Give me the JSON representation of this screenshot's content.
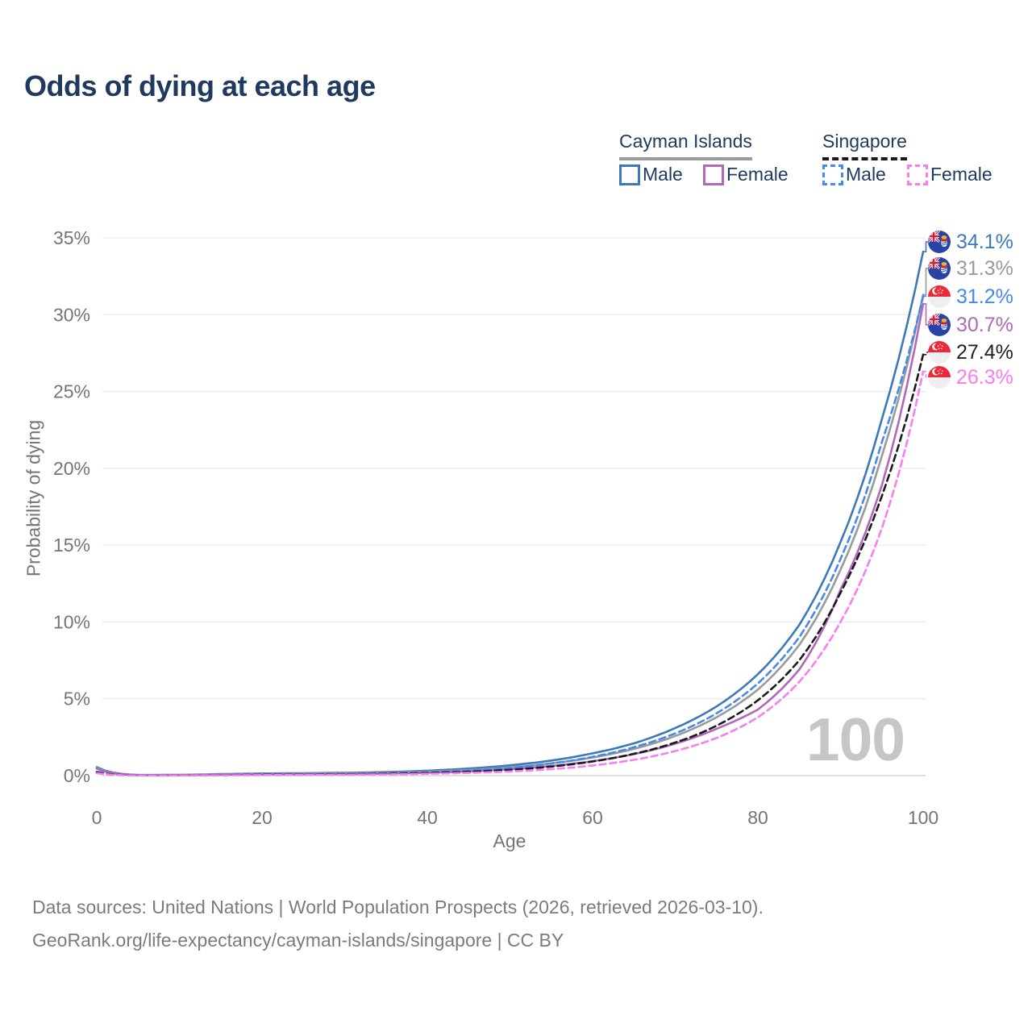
{
  "title": "Odds of dying at each age",
  "legend": {
    "groups": [
      {
        "label": "Cayman Islands",
        "line_style": "solid",
        "underline_color": "#9a9a9a",
        "items": [
          {
            "label": "Male",
            "color": "#3d79b8"
          },
          {
            "label": "Female",
            "color": "#b168ba"
          }
        ]
      },
      {
        "label": "Singapore",
        "line_style": "dashed",
        "underline_color": "#1a1a1a",
        "items": [
          {
            "label": "Male",
            "color": "#4589ec"
          },
          {
            "label": "Female",
            "color": "#f97cf0"
          }
        ]
      }
    ]
  },
  "chart_data": {
    "type": "line",
    "xlabel": "Age",
    "ylabel": "Probability of dying",
    "xlim": [
      0,
      100
    ],
    "ylim": [
      0,
      35
    ],
    "x_ticks": [
      0,
      20,
      40,
      60,
      80,
      100
    ],
    "y_ticks": [
      "0%",
      "5%",
      "10%",
      "15%",
      "20%",
      "25%",
      "30%",
      "35%"
    ],
    "grid": "horizontal",
    "hover_age_indicator": "100",
    "x": [
      0,
      5,
      10,
      15,
      20,
      25,
      30,
      35,
      40,
      45,
      50,
      55,
      60,
      65,
      70,
      75,
      80,
      85,
      90,
      95,
      100
    ],
    "series": [
      {
        "key": "cm",
        "name": "Cayman Islands Male",
        "country": "Cayman Islands",
        "sex": "Male",
        "color": "#3d79b8",
        "dashed": false,
        "end_label": "34.1%",
        "label_color": "#3d79b8",
        "flag": "cayman-islands",
        "values": [
          0.55,
          0.04,
          0.05,
          0.1,
          0.14,
          0.16,
          0.18,
          0.23,
          0.32,
          0.46,
          0.67,
          0.98,
          1.45,
          2.1,
          3.1,
          4.5,
          6.6,
          9.8,
          15.2,
          23.2,
          34.1
        ]
      },
      {
        "key": "ca",
        "name": "Cayman Islands Both sexes",
        "country": "Cayman Islands",
        "sex": "Both",
        "color": "#9a9a9a",
        "dashed": false,
        "end_label": "31.3%",
        "label_color": "#9a9a9a",
        "flag": "cayman-islands",
        "values": [
          0.5,
          0.03,
          0.04,
          0.08,
          0.11,
          0.12,
          0.14,
          0.18,
          0.25,
          0.37,
          0.54,
          0.8,
          1.18,
          1.74,
          2.58,
          3.8,
          5.6,
          8.5,
          13.4,
          20.8,
          31.3
        ]
      },
      {
        "key": "cf",
        "name": "Cayman Islands Female",
        "country": "Cayman Islands",
        "sex": "Female",
        "color": "#b168ba",
        "dashed": false,
        "end_label": "30.7%",
        "label_color": "#b168ba",
        "flag": "cayman-islands",
        "values": [
          0.45,
          0.03,
          0.03,
          0.06,
          0.08,
          0.09,
          0.1,
          0.13,
          0.19,
          0.28,
          0.42,
          0.63,
          0.94,
          1.4,
          2.08,
          3.05,
          4.3,
          6.9,
          12.1,
          18.9,
          30.7
        ]
      },
      {
        "key": "sm",
        "name": "Singapore Male",
        "country": "Singapore",
        "sex": "Male",
        "color": "#4589ec",
        "dashed": true,
        "end_label": "31.2%",
        "label_color": "#4589ec",
        "flag": "singapore",
        "values": [
          0.25,
          0.02,
          0.02,
          0.05,
          0.08,
          0.09,
          0.11,
          0.15,
          0.22,
          0.33,
          0.51,
          0.79,
          1.22,
          1.85,
          2.75,
          4.05,
          6.0,
          9.0,
          14.1,
          21.7,
          31.2
        ]
      },
      {
        "key": "sa",
        "name": "Singapore Both sexes",
        "country": "Singapore",
        "sex": "Both",
        "color": "#1a1a1a",
        "dashed": true,
        "end_label": "27.4%",
        "label_color": "#222222",
        "flag": "singapore",
        "values": [
          0.2,
          0.015,
          0.02,
          0.035,
          0.055,
          0.065,
          0.085,
          0.115,
          0.17,
          0.25,
          0.38,
          0.59,
          0.92,
          1.42,
          2.15,
          3.25,
          4.9,
          7.5,
          11.9,
          18.2,
          27.4
        ]
      },
      {
        "key": "sf",
        "name": "Singapore Female",
        "country": "Singapore",
        "sex": "Female",
        "color": "#f97cf0",
        "dashed": true,
        "end_label": "26.3%",
        "label_color": "#fb7bf0",
        "flag": "singapore",
        "values": [
          0.16,
          0.01,
          0.015,
          0.025,
          0.035,
          0.045,
          0.06,
          0.08,
          0.12,
          0.18,
          0.27,
          0.42,
          0.66,
          1.03,
          1.6,
          2.45,
          3.8,
          6.1,
          10.0,
          16.1,
          26.3
        ]
      }
    ]
  },
  "footer": {
    "line1": "Data sources: United Nations | World Population Prospects (2026, retrieved 2026-03-10).",
    "line2": "GeoRank.org/life-expectancy/cayman-islands/singapore | CC BY"
  }
}
